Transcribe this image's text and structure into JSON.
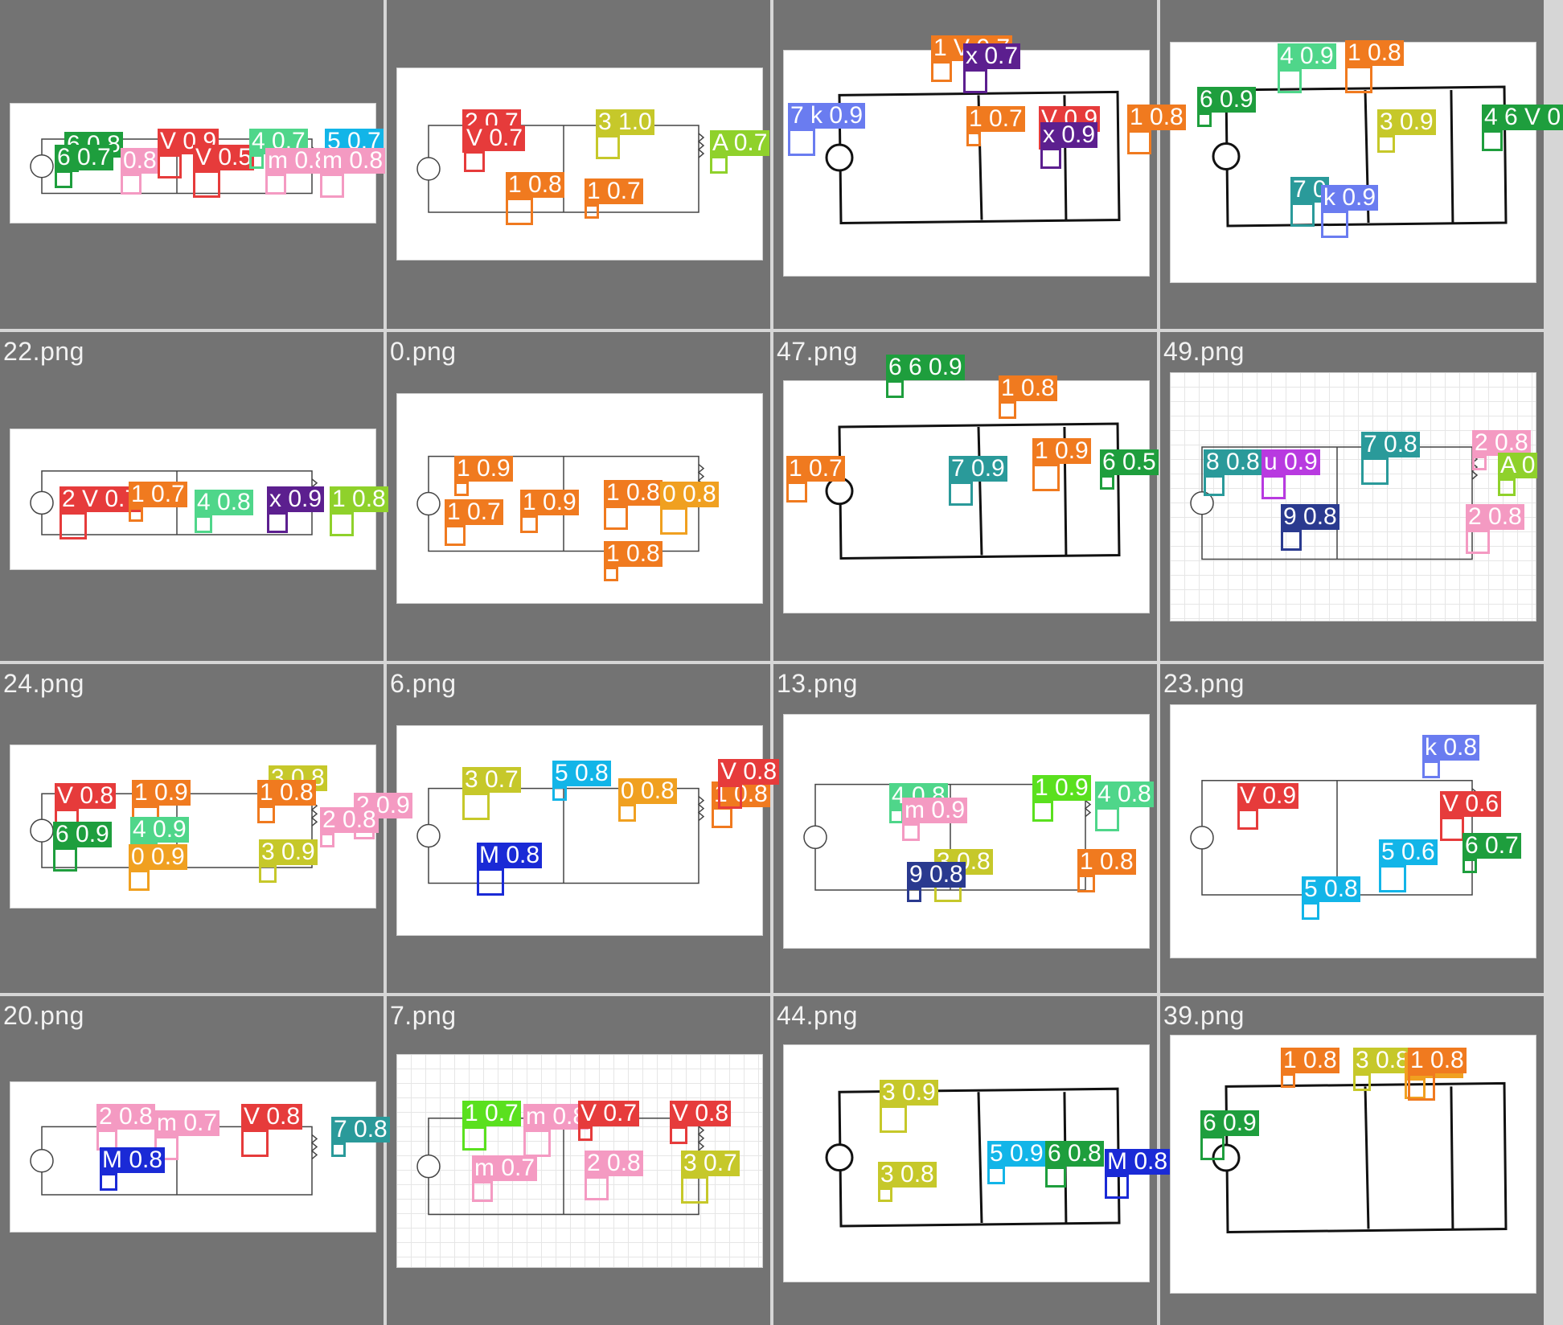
{
  "tiles": [
    {
      "label": "",
      "style": "print",
      "dets": [
        {
          "text": "6 0.8",
          "color": "#1e9e3d"
        },
        {
          "text": "6 0.7",
          "color": "#1e9e3d"
        },
        {
          "text": "0.8",
          "color": "#f49ac2"
        },
        {
          "text": "V 0.9",
          "color": "#e63b3b"
        },
        {
          "text": "V 0.5",
          "color": "#e63b3b"
        },
        {
          "text": "4 0.7",
          "color": "#4fd68a"
        },
        {
          "text": "5 0.7",
          "color": "#12b5e8"
        },
        {
          "text": "m 0.8",
          "color": "#f49ac2"
        },
        {
          "text": "m 0.8",
          "color": "#f49ac2"
        }
      ]
    },
    {
      "label": "",
      "style": "print",
      "dets": [
        {
          "text": "2 0.7",
          "color": "#e63b3b"
        },
        {
          "text": "V 0.7",
          "color": "#e63b3b"
        },
        {
          "text": "3 1.0",
          "color": "#c6c82a"
        },
        {
          "text": "1 0.8",
          "color": "#f07a1f"
        },
        {
          "text": "1 0.7",
          "color": "#f07a1f"
        },
        {
          "text": "A 0.7",
          "color": "#8fd12b"
        }
      ]
    },
    {
      "label": "",
      "style": "hand",
      "dets": [
        {
          "text": "1 V 0.7",
          "color": "#f07a1f"
        },
        {
          "text": "x 0.7",
          "color": "#5c1f8f"
        },
        {
          "text": "7 k 0.9",
          "color": "#6a7cf0"
        },
        {
          "text": "1 0.7",
          "color": "#f07a1f"
        },
        {
          "text": "V 0.9",
          "color": "#e63b3b"
        },
        {
          "text": "x 0.9",
          "color": "#5c1f8f"
        },
        {
          "text": "1 0.8",
          "color": "#f07a1f"
        }
      ]
    },
    {
      "label": "",
      "style": "hand",
      "dets": [
        {
          "text": "4 0.9",
          "color": "#4fd68a"
        },
        {
          "text": "1 0.8",
          "color": "#f07a1f"
        },
        {
          "text": "6 0.9",
          "color": "#1e9e3d"
        },
        {
          "text": "3 0.9",
          "color": "#c6c82a"
        },
        {
          "text": "4 6 V 0",
          "color": "#1e9e3d"
        },
        {
          "text": "7 0",
          "color": "#2a9a9a"
        },
        {
          "text": "k 0.9",
          "color": "#6a7cf0"
        }
      ]
    },
    {
      "label": "22.png",
      "style": "print",
      "dets": [
        {
          "text": "2 V 0.7",
          "color": "#e63b3b"
        },
        {
          "text": "1 0.7",
          "color": "#f07a1f"
        },
        {
          "text": "4 0.8",
          "color": "#4fd68a"
        },
        {
          "text": "x 0.9",
          "color": "#5c1f8f"
        },
        {
          "text": "1 0.8",
          "color": "#8fd12b"
        }
      ]
    },
    {
      "label": "0.png",
      "style": "print",
      "dets": [
        {
          "text": "1 0.9",
          "color": "#f07a1f"
        },
        {
          "text": "1 0.9",
          "color": "#f07a1f"
        },
        {
          "text": "1 0.7",
          "color": "#f07a1f"
        },
        {
          "text": "1 0.8",
          "color": "#f07a1f"
        },
        {
          "text": "0 0.8",
          "color": "#f0a020"
        },
        {
          "text": "1 0.8",
          "color": "#f07a1f"
        }
      ]
    },
    {
      "label": "47.png",
      "style": "hand",
      "dets": [
        {
          "text": "6 6 0.9",
          "color": "#1e9e3d"
        },
        {
          "text": "1 0.7",
          "color": "#f07a1f"
        },
        {
          "text": "7 0.9",
          "color": "#2a9a9a"
        },
        {
          "text": "1 0.9",
          "color": "#f07a1f"
        },
        {
          "text": "6 0.5",
          "color": "#1e9e3d"
        },
        {
          "text": "1 0.8",
          "color": "#f07a1f"
        }
      ]
    },
    {
      "label": "49.png",
      "style": "printgrid",
      "dets": [
        {
          "text": "8 0.8",
          "color": "#2a9a9a"
        },
        {
          "text": "u 0.9",
          "color": "#b83ae0"
        },
        {
          "text": "7 0.8",
          "color": "#2a9a9a"
        },
        {
          "text": "2 0.8",
          "color": "#f49ac2"
        },
        {
          "text": "A 0",
          "color": "#8fd12b"
        },
        {
          "text": "9 0.8",
          "color": "#2a3a8f"
        },
        {
          "text": "2 0.8",
          "color": "#f49ac2"
        }
      ]
    },
    {
      "label": "24.png",
      "style": "print",
      "dets": [
        {
          "text": "V 0.8",
          "color": "#e63b3b"
        },
        {
          "text": "1 0.9",
          "color": "#f07a1f"
        },
        {
          "text": "3 0.8",
          "color": "#c6c82a"
        },
        {
          "text": "1 0.8",
          "color": "#f07a1f"
        },
        {
          "text": "2 0.9",
          "color": "#f49ac2"
        },
        {
          "text": "6 0.9",
          "color": "#1e9e3d"
        },
        {
          "text": "4 0.9",
          "color": "#4fd68a"
        },
        {
          "text": "2 0.8",
          "color": "#f49ac2"
        },
        {
          "text": "3 0.9",
          "color": "#c6c82a"
        },
        {
          "text": "0 0.9",
          "color": "#f0a020"
        }
      ]
    },
    {
      "label": "6.png",
      "style": "print",
      "dets": [
        {
          "text": "3 0.7",
          "color": "#c6c82a"
        },
        {
          "text": "5 0.8",
          "color": "#12b5e8"
        },
        {
          "text": "0 0.8",
          "color": "#f0a020"
        },
        {
          "text": "1 0.8",
          "color": "#f07a1f"
        },
        {
          "text": "V 0.8",
          "color": "#e63b3b"
        },
        {
          "text": "M 0.8",
          "color": "#1a2ad6"
        }
      ]
    },
    {
      "label": "13.png",
      "style": "print",
      "dets": [
        {
          "text": "4 0.8",
          "color": "#4fd68a"
        },
        {
          "text": "m 0.9",
          "color": "#f49ac2"
        },
        {
          "text": "1 0.9",
          "color": "#5ae01e"
        },
        {
          "text": "4 0.8",
          "color": "#4fd68a"
        },
        {
          "text": "3 0.8",
          "color": "#c6c82a"
        },
        {
          "text": "9 0.8",
          "color": "#2a3a8f"
        },
        {
          "text": "1 0.8",
          "color": "#f07a1f"
        }
      ]
    },
    {
      "label": "23.png",
      "style": "print",
      "dets": [
        {
          "text": "k 0.8",
          "color": "#6a7cf0"
        },
        {
          "text": "V 0.9",
          "color": "#e63b3b"
        },
        {
          "text": "V 0.6",
          "color": "#e63b3b"
        },
        {
          "text": "5 0.6",
          "color": "#12b5e8"
        },
        {
          "text": "6 0.7",
          "color": "#1e9e3d"
        },
        {
          "text": "5 0.8",
          "color": "#12b5e8"
        }
      ]
    },
    {
      "label": "20.png",
      "style": "print",
      "dets": [
        {
          "text": "2 0.8",
          "color": "#f49ac2"
        },
        {
          "text": "m 0.7",
          "color": "#f49ac2"
        },
        {
          "text": "V 0.8",
          "color": "#e63b3b"
        },
        {
          "text": "7 0.8",
          "color": "#2a9a9a"
        },
        {
          "text": "M 0.8",
          "color": "#1a2ad6"
        }
      ]
    },
    {
      "label": "7.png",
      "style": "printgrid",
      "dets": [
        {
          "text": "1 0.7",
          "color": "#5ae01e"
        },
        {
          "text": "m 0.8",
          "color": "#f49ac2"
        },
        {
          "text": "V 0.7",
          "color": "#e63b3b"
        },
        {
          "text": "V 0.8",
          "color": "#e63b3b"
        },
        {
          "text": "m 0.7",
          "color": "#f49ac2"
        },
        {
          "text": "2 0.8",
          "color": "#f49ac2"
        },
        {
          "text": "3 0.7",
          "color": "#c6c82a"
        }
      ]
    },
    {
      "label": "44.png",
      "style": "hand",
      "dets": [
        {
          "text": "3 0.9",
          "color": "#c6c82a"
        },
        {
          "text": "3 0.8",
          "color": "#c6c82a"
        },
        {
          "text": "5 0.9",
          "color": "#12b5e8"
        },
        {
          "text": "6 0.8",
          "color": "#1e9e3d"
        },
        {
          "text": "M 0.8",
          "color": "#1a2ad6"
        }
      ]
    },
    {
      "label": "39.png",
      "style": "hand",
      "dets": [
        {
          "text": "1 0.8",
          "color": "#f07a1f"
        },
        {
          "text": "3 0.8",
          "color": "#c6c82a"
        },
        {
          "text": "0 0.8",
          "color": "#f0a020"
        },
        {
          "text": "6 0.9",
          "color": "#1e9e3d"
        },
        {
          "text": "1 0.8",
          "color": "#f07a1f"
        }
      ]
    }
  ]
}
